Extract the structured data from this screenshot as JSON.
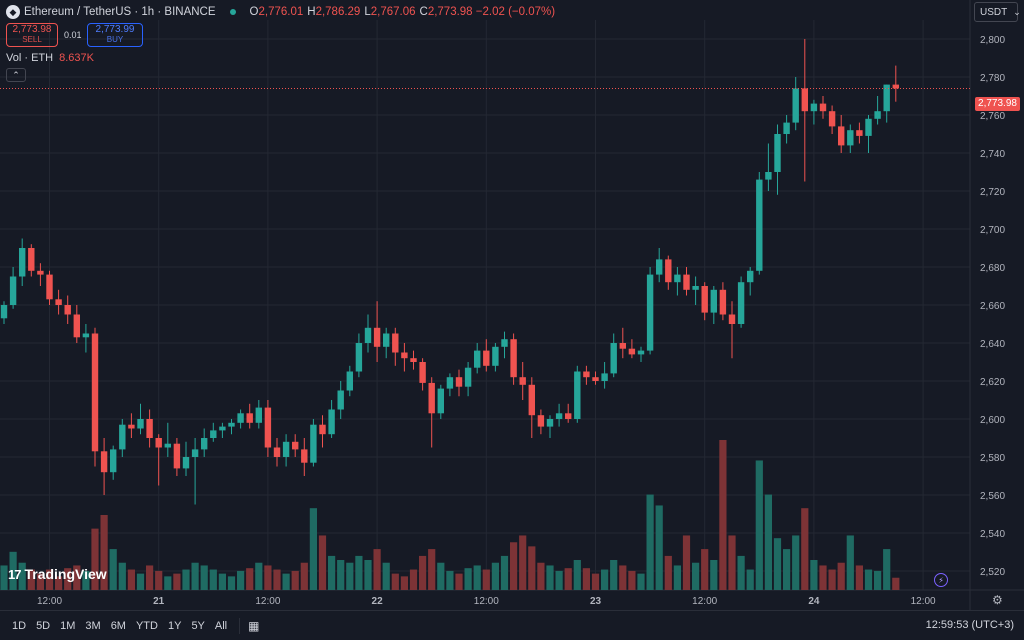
{
  "header": {
    "coin_glyph": "◆",
    "symbol_line": "Ethereum / TetherUS · 1h · BINANCE",
    "ohlc": [
      {
        "k": "O",
        "v": "2,776.01"
      },
      {
        "k": "H",
        "v": "2,786.29"
      },
      {
        "k": "L",
        "v": "2,767.06"
      },
      {
        "k": "C",
        "v": "2,773.98 −2.02 (−0.07%)"
      }
    ],
    "sell_price": "2,773.98",
    "sell_label": "SELL",
    "spread": "0.01",
    "buy_price": "2,773.99",
    "buy_label": "BUY",
    "volume_label": "Vol · ETH",
    "volume_value": "8.637K",
    "collapse_glyph": "⌃"
  },
  "currency": {
    "label": "USDT",
    "chevron": "⌄"
  },
  "last_price_tag": "2,773.98",
  "logo": {
    "mark": "17",
    "text": "TradingView"
  },
  "bolt_glyph": "⚡",
  "gear_glyph": "⚙",
  "ranges": [
    "1D",
    "5D",
    "1M",
    "3M",
    "6M",
    "YTD",
    "1Y",
    "5Y",
    "All"
  ],
  "calendar_glyph": "▦",
  "clock": "12:59:53 (UTC+3)",
  "colors": {
    "up": "#26a69a",
    "down": "#ef5350",
    "vol_up": "#1f6b63",
    "vol_down": "#7d3336",
    "grid": "#242833",
    "bg": "#161a25"
  },
  "chart_data": {
    "type": "candlestick",
    "y_axis": {
      "ticks": [
        2520,
        2540,
        2560,
        2580,
        2600,
        2620,
        2640,
        2660,
        2680,
        2700,
        2720,
        2740,
        2760,
        2780,
        2800
      ],
      "ylim": [
        2510,
        2810
      ]
    },
    "x_axis": {
      "ticks": [
        {
          "label": "12:00",
          "index": 5
        },
        {
          "label": "21",
          "index": 17
        },
        {
          "label": "12:00",
          "index": 29
        },
        {
          "label": "22",
          "index": 41
        },
        {
          "label": "12:00",
          "index": 53
        },
        {
          "label": "23",
          "index": 65
        },
        {
          "label": "12:00",
          "index": 77
        },
        {
          "label": "24",
          "index": 89
        },
        {
          "label": "12:00",
          "index": 101
        }
      ]
    },
    "last_price": 2773.98,
    "volume_max": 110,
    "candles": [
      [
        2653,
        2662,
        2650,
        2660,
        18
      ],
      [
        2660,
        2680,
        2658,
        2675,
        28
      ],
      [
        2675,
        2695,
        2670,
        2690,
        20
      ],
      [
        2690,
        2692,
        2675,
        2678,
        15
      ],
      [
        2678,
        2682,
        2670,
        2676,
        12
      ],
      [
        2676,
        2678,
        2660,
        2663,
        15
      ],
      [
        2663,
        2668,
        2655,
        2660,
        10
      ],
      [
        2660,
        2665,
        2650,
        2655,
        16
      ],
      [
        2655,
        2660,
        2640,
        2643,
        18
      ],
      [
        2643,
        2650,
        2635,
        2645,
        14
      ],
      [
        2645,
        2648,
        2575,
        2583,
        45
      ],
      [
        2583,
        2590,
        2560,
        2572,
        55
      ],
      [
        2572,
        2586,
        2568,
        2584,
        30
      ],
      [
        2584,
        2600,
        2580,
        2597,
        20
      ],
      [
        2597,
        2603,
        2590,
        2595,
        15
      ],
      [
        2595,
        2608,
        2592,
        2600,
        12
      ],
      [
        2600,
        2605,
        2585,
        2590,
        18
      ],
      [
        2590,
        2592,
        2565,
        2585,
        14
      ],
      [
        2585,
        2598,
        2580,
        2587,
        10
      ],
      [
        2587,
        2590,
        2570,
        2574,
        12
      ],
      [
        2574,
        2588,
        2570,
        2580,
        15
      ],
      [
        2580,
        2590,
        2555,
        2584,
        20
      ],
      [
        2584,
        2595,
        2580,
        2590,
        18
      ],
      [
        2590,
        2598,
        2588,
        2594,
        15
      ],
      [
        2594,
        2598,
        2590,
        2596,
        12
      ],
      [
        2596,
        2600,
        2592,
        2598,
        10
      ],
      [
        2598,
        2605,
        2595,
        2603,
        14
      ],
      [
        2603,
        2608,
        2595,
        2598,
        16
      ],
      [
        2598,
        2610,
        2595,
        2606,
        20
      ],
      [
        2606,
        2610,
        2580,
        2585,
        18
      ],
      [
        2585,
        2590,
        2575,
        2580,
        15
      ],
      [
        2580,
        2592,
        2575,
        2588,
        12
      ],
      [
        2588,
        2592,
        2580,
        2584,
        14
      ],
      [
        2584,
        2590,
        2570,
        2577,
        20
      ],
      [
        2577,
        2600,
        2575,
        2597,
        60
      ],
      [
        2597,
        2602,
        2585,
        2592,
        40
      ],
      [
        2592,
        2610,
        2590,
        2605,
        25
      ],
      [
        2605,
        2620,
        2600,
        2615,
        22
      ],
      [
        2615,
        2628,
        2612,
        2625,
        20
      ],
      [
        2625,
        2645,
        2622,
        2640,
        25
      ],
      [
        2640,
        2655,
        2635,
        2648,
        22
      ],
      [
        2648,
        2662,
        2630,
        2638,
        30
      ],
      [
        2638,
        2648,
        2632,
        2645,
        20
      ],
      [
        2645,
        2648,
        2628,
        2635,
        12
      ],
      [
        2635,
        2640,
        2625,
        2632,
        10
      ],
      [
        2632,
        2636,
        2626,
        2630,
        15
      ],
      [
        2630,
        2632,
        2615,
        2619,
        25
      ],
      [
        2619,
        2622,
        2585,
        2603,
        30
      ],
      [
        2603,
        2618,
        2600,
        2616,
        20
      ],
      [
        2616,
        2624,
        2612,
        2622,
        14
      ],
      [
        2622,
        2626,
        2612,
        2617,
        12
      ],
      [
        2617,
        2630,
        2612,
        2627,
        16
      ],
      [
        2627,
        2640,
        2624,
        2636,
        18
      ],
      [
        2636,
        2642,
        2625,
        2628,
        15
      ],
      [
        2628,
        2640,
        2625,
        2638,
        20
      ],
      [
        2638,
        2646,
        2632,
        2642,
        25
      ],
      [
        2642,
        2645,
        2618,
        2622,
        35
      ],
      [
        2622,
        2630,
        2610,
        2618,
        40
      ],
      [
        2618,
        2622,
        2590,
        2602,
        32
      ],
      [
        2602,
        2605,
        2592,
        2596,
        20
      ],
      [
        2596,
        2602,
        2590,
        2600,
        18
      ],
      [
        2600,
        2608,
        2596,
        2603,
        14
      ],
      [
        2603,
        2608,
        2598,
        2600,
        16
      ],
      [
        2600,
        2628,
        2598,
        2625,
        22
      ],
      [
        2625,
        2628,
        2618,
        2622,
        16
      ],
      [
        2622,
        2625,
        2618,
        2620,
        12
      ],
      [
        2620,
        2630,
        2616,
        2624,
        15
      ],
      [
        2624,
        2645,
        2622,
        2640,
        22
      ],
      [
        2640,
        2648,
        2632,
        2637,
        18
      ],
      [
        2637,
        2642,
        2632,
        2634,
        14
      ],
      [
        2634,
        2638,
        2630,
        2636,
        12
      ],
      [
        2636,
        2680,
        2634,
        2676,
        70
      ],
      [
        2676,
        2690,
        2672,
        2684,
        62
      ],
      [
        2684,
        2686,
        2668,
        2672,
        25
      ],
      [
        2672,
        2680,
        2665,
        2676,
        18
      ],
      [
        2676,
        2680,
        2665,
        2668,
        40
      ],
      [
        2668,
        2675,
        2660,
        2670,
        20
      ],
      [
        2670,
        2672,
        2652,
        2656,
        30
      ],
      [
        2656,
        2670,
        2650,
        2668,
        22
      ],
      [
        2668,
        2672,
        2652,
        2655,
        110
      ],
      [
        2655,
        2662,
        2632,
        2650,
        40
      ],
      [
        2650,
        2675,
        2648,
        2672,
        25
      ],
      [
        2672,
        2680,
        2665,
        2678,
        15
      ],
      [
        2678,
        2730,
        2676,
        2726,
        95
      ],
      [
        2726,
        2745,
        2720,
        2730,
        70
      ],
      [
        2730,
        2755,
        2718,
        2750,
        38
      ],
      [
        2750,
        2760,
        2745,
        2756,
        30
      ],
      [
        2756,
        2780,
        2752,
        2774,
        40
      ],
      [
        2774,
        2800,
        2725,
        2762,
        60
      ],
      [
        2762,
        2768,
        2755,
        2766,
        22
      ],
      [
        2766,
        2770,
        2758,
        2762,
        18
      ],
      [
        2762,
        2765,
        2750,
        2754,
        15
      ],
      [
        2754,
        2760,
        2740,
        2744,
        20
      ],
      [
        2744,
        2755,
        2740,
        2752,
        40
      ],
      [
        2752,
        2756,
        2745,
        2749,
        18
      ],
      [
        2749,
        2760,
        2740,
        2758,
        15
      ],
      [
        2758,
        2770,
        2755,
        2762,
        14
      ],
      [
        2762,
        2776,
        2756,
        2776,
        30
      ],
      [
        2776,
        2786,
        2767,
        2773.98,
        9
      ]
    ]
  }
}
